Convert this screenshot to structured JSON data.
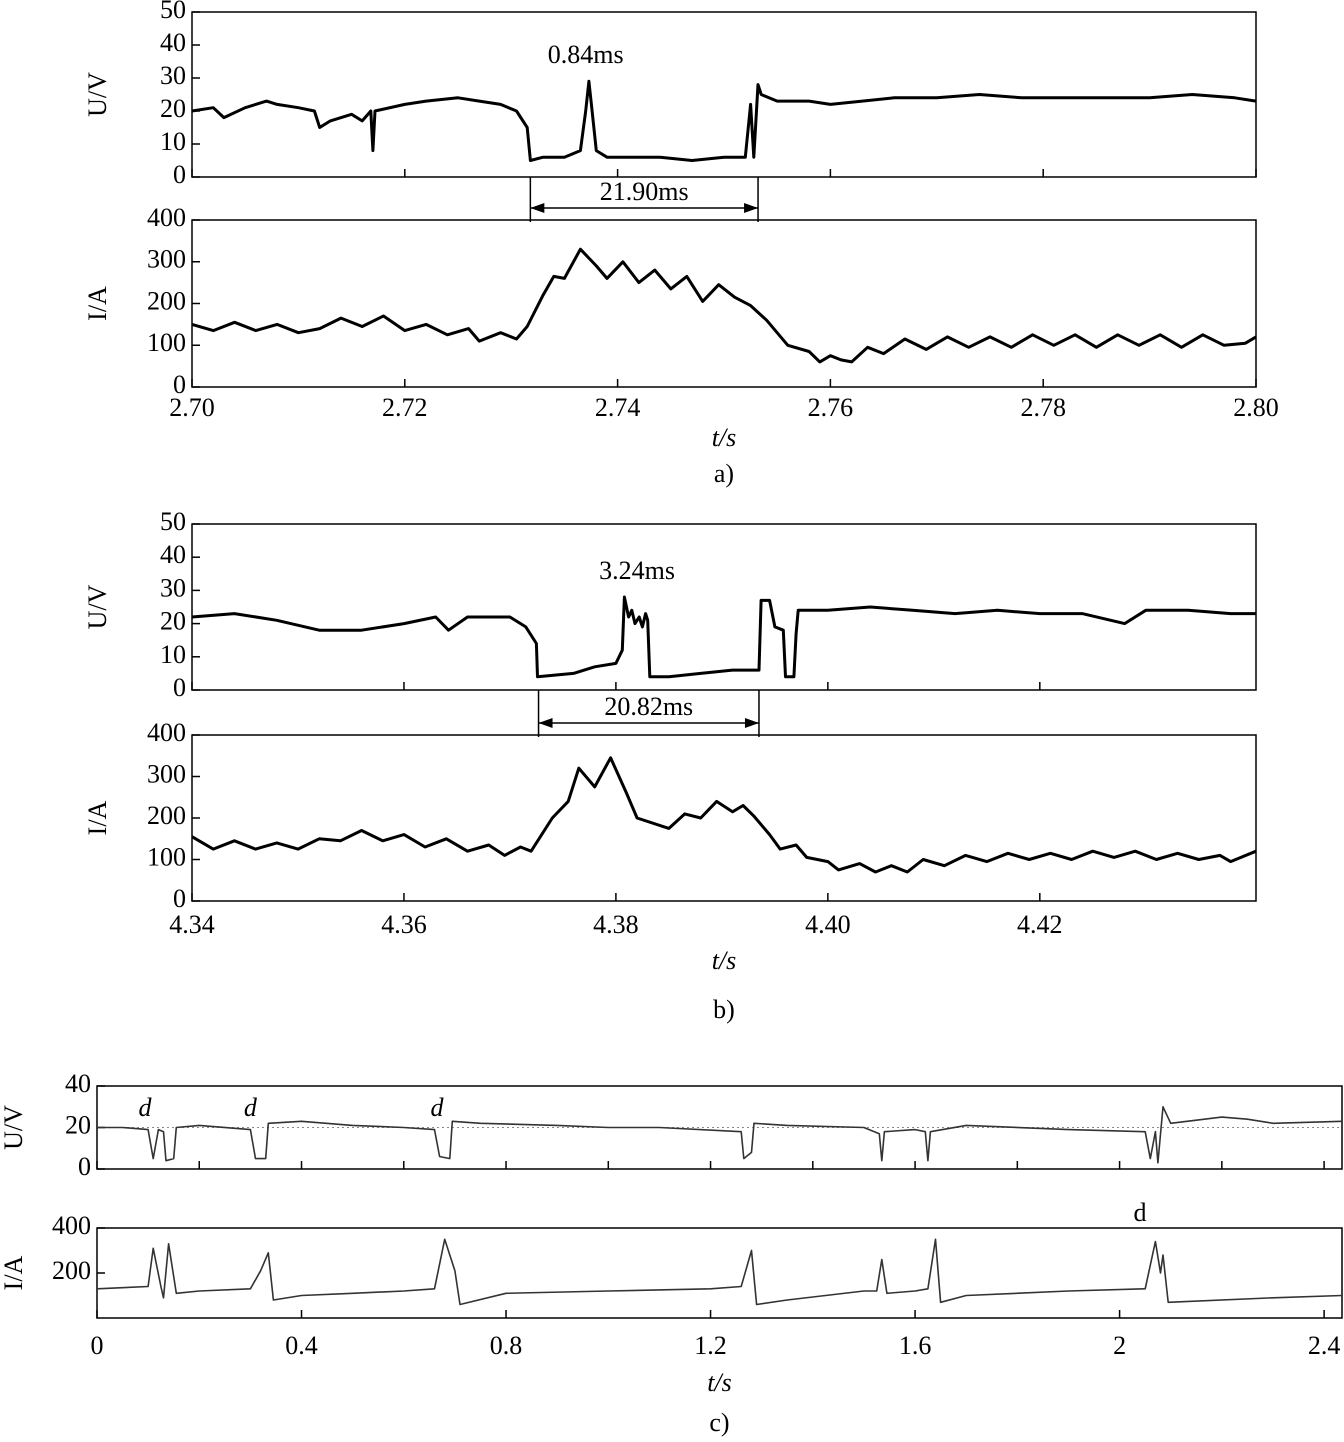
{
  "chart_data": [
    {
      "type": "line",
      "ylabel": "U/V",
      "color": "#000000",
      "x": [
        2.7,
        2.702,
        2.703,
        2.705,
        2.707,
        2.708,
        2.71,
        2.7115,
        2.712,
        2.713,
        2.715,
        2.716,
        2.7168,
        2.717,
        2.7172,
        2.72,
        2.722,
        2.725,
        2.727,
        2.729,
        2.7305,
        2.7315,
        2.7318,
        2.733,
        2.735,
        2.7365,
        2.737,
        2.7373,
        2.7376,
        2.738,
        2.739,
        2.741,
        2.744,
        2.747,
        2.75,
        2.752,
        2.7525,
        2.7528,
        2.7532,
        2.7535,
        2.755,
        2.758,
        2.76,
        2.763,
        2.766,
        2.77,
        2.774,
        2.778,
        2.782,
        2.786,
        2.79,
        2.794,
        2.798,
        2.8
      ],
      "values": [
        20,
        21,
        18,
        21,
        23,
        22,
        21,
        20,
        15,
        17,
        19,
        17,
        20,
        8,
        20,
        22,
        23,
        24,
        23,
        22,
        20,
        15,
        5,
        6,
        6,
        8,
        20,
        29,
        20,
        8,
        6,
        6,
        6,
        5,
        6,
        6,
        22,
        6,
        28,
        25,
        23,
        23,
        22,
        23,
        24,
        24,
        25,
        24,
        24,
        24,
        24,
        25,
        24,
        23
      ],
      "xlim": [
        2.7,
        2.8
      ],
      "ylim": [
        0,
        50
      ],
      "yticks": [
        0,
        10,
        20,
        30,
        40,
        50
      ],
      "xticks": [
        2.7,
        2.72,
        2.74,
        2.76,
        2.78,
        2.8
      ],
      "xtick_labels": false,
      "annotations": [
        {
          "text": "0.84ms",
          "x": 2.737
        },
        {
          "text": "21.90ms",
          "span": [
            2.7318,
            2.7532
          ]
        }
      ]
    },
    {
      "type": "line",
      "ylabel": "I/A",
      "xlabel": "t/s",
      "caption": "a)",
      "color": "#000000",
      "x": [
        2.7,
        2.702,
        2.704,
        2.706,
        2.708,
        2.71,
        2.712,
        2.714,
        2.716,
        2.718,
        2.72,
        2.722,
        2.724,
        2.726,
        2.727,
        2.729,
        2.7305,
        2.7315,
        2.733,
        2.734,
        2.735,
        2.7365,
        2.738,
        2.739,
        2.7405,
        2.742,
        2.7435,
        2.745,
        2.7465,
        2.748,
        2.7495,
        2.751,
        2.7525,
        2.754,
        2.756,
        2.758,
        2.759,
        2.76,
        2.761,
        2.762,
        2.7635,
        2.765,
        2.767,
        2.769,
        2.771,
        2.773,
        2.775,
        2.777,
        2.779,
        2.781,
        2.783,
        2.785,
        2.787,
        2.789,
        2.791,
        2.793,
        2.795,
        2.797,
        2.799,
        2.8
      ],
      "values": [
        150,
        135,
        155,
        135,
        150,
        130,
        140,
        165,
        145,
        170,
        135,
        150,
        125,
        140,
        110,
        130,
        115,
        145,
        220,
        265,
        260,
        330,
        290,
        260,
        300,
        250,
        280,
        235,
        265,
        205,
        245,
        215,
        195,
        160,
        100,
        85,
        60,
        75,
        65,
        60,
        95,
        80,
        115,
        90,
        120,
        95,
        120,
        95,
        125,
        100,
        125,
        95,
        125,
        100,
        125,
        95,
        125,
        100,
        105,
        120
      ],
      "xlim": [
        2.7,
        2.8
      ],
      "ylim": [
        0,
        400
      ],
      "yticks": [
        0,
        100,
        200,
        300,
        400
      ],
      "xticks": [
        {
          "value": 2.7,
          "label": "2.70"
        },
        2.72,
        2.74,
        2.76,
        2.78,
        {
          "value": 2.8,
          "label": "2.80"
        }
      ]
    },
    {
      "type": "line",
      "ylabel": "U/V",
      "color": "#000000",
      "x": [
        4.34,
        4.344,
        4.348,
        4.352,
        4.356,
        4.36,
        4.363,
        4.3642,
        4.366,
        4.37,
        4.3715,
        4.3725,
        4.3726,
        4.376,
        4.378,
        4.38,
        4.3806,
        4.3808,
        4.3812,
        4.3815,
        4.3818,
        4.3822,
        4.3825,
        4.3828,
        4.383,
        4.3832,
        4.385,
        4.388,
        4.391,
        4.3935,
        4.3937,
        4.3945,
        4.395,
        4.3958,
        4.396,
        4.3968,
        4.397,
        4.3972,
        4.4,
        4.404,
        4.408,
        4.412,
        4.416,
        4.42,
        4.424,
        4.428,
        4.43,
        4.434,
        4.438,
        4.4404
      ],
      "values": [
        22,
        23,
        21,
        18,
        18,
        20,
        22,
        18,
        22,
        22,
        19,
        14,
        4,
        5,
        7,
        8,
        12,
        28,
        22,
        24,
        20,
        22,
        19,
        23,
        21,
        4,
        4,
        5,
        6,
        6,
        27,
        27,
        19,
        18,
        4,
        4,
        17,
        24,
        24,
        25,
        24,
        23,
        24,
        23,
        23,
        20,
        24,
        24,
        23,
        23
      ],
      "xlim": [
        4.34,
        4.4404
      ],
      "ylim": [
        0,
        50
      ],
      "yticks": [
        0,
        10,
        20,
        30,
        40,
        50
      ],
      "xticks": [
        4.34,
        4.36,
        4.38,
        4.4,
        4.42
      ],
      "xtick_labels": false,
      "annotations": [
        {
          "text": "3.24ms",
          "x": 4.382
        },
        {
          "text": "20.82ms",
          "span": [
            4.3727,
            4.3935
          ]
        }
      ]
    },
    {
      "type": "line",
      "ylabel": "I/A",
      "xlabel": "t/s",
      "caption": "b)",
      "color": "#000000",
      "x": [
        4.34,
        4.342,
        4.344,
        4.346,
        4.348,
        4.35,
        4.352,
        4.354,
        4.356,
        4.358,
        4.36,
        4.362,
        4.364,
        4.366,
        4.368,
        4.3695,
        4.371,
        4.372,
        4.374,
        4.3755,
        4.3765,
        4.378,
        4.3795,
        4.381,
        4.382,
        4.385,
        4.3865,
        4.388,
        4.3895,
        4.391,
        4.392,
        4.393,
        4.3945,
        4.3955,
        4.397,
        4.398,
        4.4,
        4.401,
        4.403,
        4.4045,
        4.406,
        4.4075,
        4.409,
        4.411,
        4.413,
        4.415,
        4.417,
        4.419,
        4.421,
        4.423,
        4.425,
        4.427,
        4.429,
        4.431,
        4.433,
        4.435,
        4.437,
        4.438,
        4.4404
      ],
      "values": [
        155,
        125,
        145,
        125,
        140,
        125,
        150,
        145,
        170,
        145,
        160,
        130,
        150,
        120,
        135,
        110,
        130,
        120,
        200,
        240,
        320,
        275,
        345,
        260,
        200,
        175,
        210,
        200,
        240,
        215,
        230,
        205,
        160,
        125,
        135,
        105,
        95,
        75,
        90,
        70,
        85,
        70,
        100,
        85,
        110,
        95,
        115,
        100,
        115,
        100,
        120,
        105,
        120,
        100,
        115,
        100,
        110,
        95,
        120
      ],
      "xlim": [
        4.34,
        4.4404
      ],
      "ylim": [
        0,
        400
      ],
      "yticks": [
        0,
        100,
        200,
        300,
        400
      ],
      "xticks": [
        4.34,
        4.36,
        4.38,
        {
          "value": 4.4,
          "label": "4.40"
        },
        4.42
      ]
    },
    {
      "type": "line",
      "ylabel": "U/V",
      "color": "#333333",
      "hline": 20,
      "x": [
        0,
        0.05,
        0.1,
        0.11,
        0.12,
        0.13,
        0.135,
        0.15,
        0.155,
        0.2,
        0.3,
        0.31,
        0.33,
        0.335,
        0.4,
        0.5,
        0.6,
        0.66,
        0.67,
        0.69,
        0.695,
        0.75,
        0.9,
        1.0,
        1.1,
        1.26,
        1.265,
        1.28,
        1.285,
        1.35,
        1.5,
        1.53,
        1.535,
        1.54,
        1.6,
        1.62,
        1.625,
        1.63,
        1.7,
        1.9,
        2.05,
        2.06,
        2.07,
        2.075,
        2.085,
        2.1,
        2.2,
        2.25,
        2.3,
        2.435
      ],
      "values": [
        20,
        20,
        19,
        5,
        19,
        18,
        4,
        5,
        20,
        21,
        19,
        5,
        5,
        22,
        23,
        21,
        20,
        19,
        6,
        5,
        23,
        22,
        21,
        20,
        20,
        18,
        5,
        8,
        22,
        21,
        20,
        17,
        4,
        18,
        19,
        18,
        4,
        18,
        21,
        19,
        18,
        5,
        18,
        3,
        30,
        22,
        25,
        24,
        22,
        23
      ],
      "xlim": [
        0,
        2.435
      ],
      "ylim": [
        0,
        40
      ],
      "yticks": [
        0,
        20,
        40
      ],
      "xticks": [
        0,
        0.2,
        0.4,
        0.6,
        0.8,
        1,
        1.2,
        1.4,
        1.6,
        1.8,
        2,
        2.2,
        2.4
      ],
      "xtick_labels": false,
      "annotations": [
        {
          "text": "d",
          "x": 0.094,
          "font_style": "italic"
        },
        {
          "text": "d",
          "x": 0.3,
          "font_style": "italic"
        },
        {
          "text": "d",
          "x": 0.665,
          "font_style": "italic"
        }
      ]
    },
    {
      "type": "line",
      "ylabel": "I/A",
      "xlabel": "t/s",
      "caption": "c)",
      "color": "#333333",
      "x": [
        0,
        0.1,
        0.11,
        0.125,
        0.13,
        0.14,
        0.155,
        0.2,
        0.3,
        0.32,
        0.335,
        0.345,
        0.4,
        0.5,
        0.6,
        0.66,
        0.68,
        0.7,
        0.71,
        0.8,
        1.0,
        1.2,
        1.26,
        1.28,
        1.29,
        1.35,
        1.5,
        1.525,
        1.535,
        1.545,
        1.6,
        1.625,
        1.64,
        1.65,
        1.7,
        1.9,
        2.05,
        2.07,
        2.08,
        2.085,
        2.095,
        2.3,
        2.435
      ],
      "values": [
        130,
        140,
        310,
        140,
        90,
        330,
        110,
        120,
        130,
        210,
        290,
        80,
        100,
        110,
        120,
        130,
        350,
        210,
        60,
        110,
        120,
        130,
        140,
        300,
        60,
        80,
        120,
        120,
        260,
        110,
        120,
        130,
        350,
        70,
        100,
        120,
        130,
        340,
        200,
        280,
        70,
        90,
        100
      ],
      "xlim": [
        0,
        2.435
      ],
      "ylim": [
        0,
        400
      ],
      "yticks": [
        200,
        400
      ],
      "xticks": [
        0,
        0.4,
        0.8,
        1.2,
        1.6,
        2,
        2.4
      ],
      "annotations": [
        {
          "text": "d",
          "x": 2.04
        }
      ]
    }
  ]
}
